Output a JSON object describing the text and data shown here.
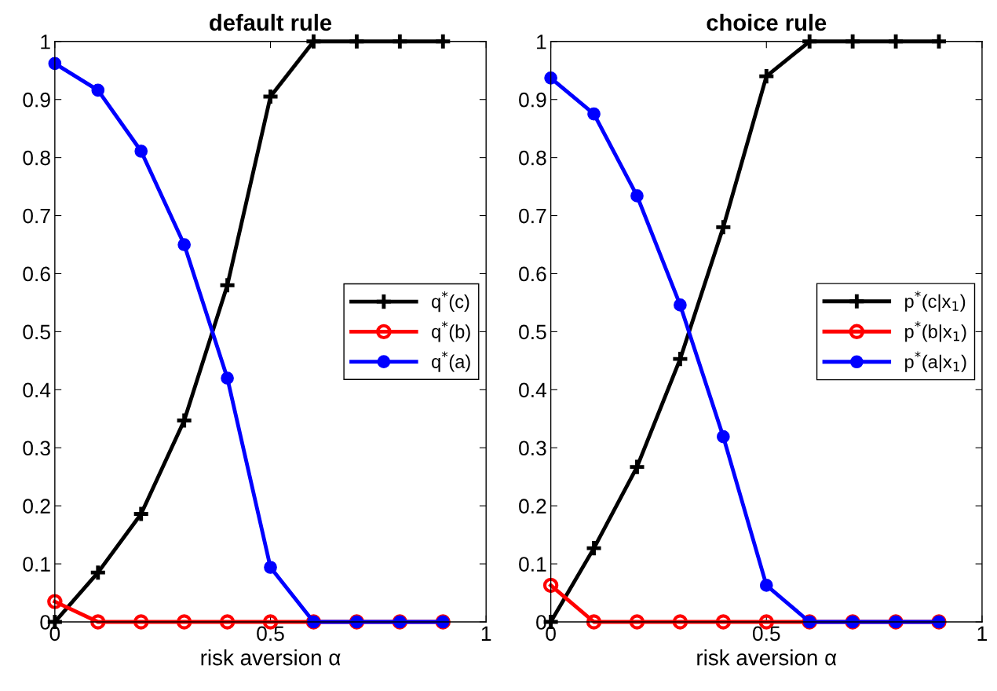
{
  "chart_data": [
    {
      "type": "line",
      "title": "default rule",
      "xlabel": "risk aversion α",
      "x": [
        0,
        0.1,
        0.2,
        0.3,
        0.4,
        0.5,
        0.6,
        0.7,
        0.8,
        0.9
      ],
      "xlim": [
        0,
        1
      ],
      "xticks": [
        0,
        0.5,
        1
      ],
      "ylim": [
        0,
        1
      ],
      "yticks": [
        0,
        0.1,
        0.2,
        0.3,
        0.4,
        0.5,
        0.6,
        0.7,
        0.8,
        0.9,
        1
      ],
      "grid": false,
      "legend": "right",
      "line_style": "solid",
      "series": [
        {
          "name": "q$^{*}$(c)",
          "color": "#000000",
          "marker": "cross",
          "values": [
            0,
            0.085,
            0.186,
            0.347,
            0.58,
            0.905,
            1,
            1,
            1,
            1
          ]
        },
        {
          "name": "q$^{*}$(b)",
          "color": "#ff0000",
          "marker": "circle",
          "values": [
            0.035,
            0,
            0,
            0,
            0,
            0,
            0,
            0,
            0,
            0
          ]
        },
        {
          "name": "q$^{*}$(a)",
          "color": "#0000ff",
          "marker": "circle",
          "values": [
            0.962,
            0.916,
            0.811,
            0.65,
            0.42,
            0.094,
            0,
            0,
            0,
            0
          ]
        }
      ]
    },
    {
      "type": "line",
      "title": "choice rule",
      "xlabel": "risk aversion α",
      "x": [
        0,
        0.1,
        0.2,
        0.3,
        0.4,
        0.5,
        0.6,
        0.7,
        0.8,
        0.9
      ],
      "xlim": [
        0,
        1
      ],
      "xticks": [
        0,
        0.5,
        1
      ],
      "ylim": [
        0,
        1
      ],
      "yticks": [
        0,
        0.1,
        0.2,
        0.3,
        0.4,
        0.5,
        0.6,
        0.7,
        0.8,
        0.9,
        1
      ],
      "grid": false,
      "legend": "right",
      "line_style": "solid",
      "series": [
        {
          "name": "p$^{*}$(c|x$_{1}$)",
          "color": "#000000",
          "marker": "cross",
          "values": [
            0,
            0.127,
            0.267,
            0.453,
            0.68,
            0.94,
            1,
            1,
            1,
            1
          ]
        },
        {
          "name": "p$^{*}$(b|x$_{1}$)",
          "color": "#ff0000",
          "marker": "circle",
          "values": [
            0.063,
            0,
            0,
            0,
            0,
            0,
            0,
            0,
            0,
            0
          ]
        },
        {
          "name": "p$^{*}$(a|x$_{1}$)",
          "color": "#0000ff",
          "marker": "circle",
          "values": [
            0.937,
            0.875,
            0.734,
            0.546,
            0.319,
            0.063,
            0,
            0,
            0,
            0
          ]
        }
      ]
    }
  ]
}
